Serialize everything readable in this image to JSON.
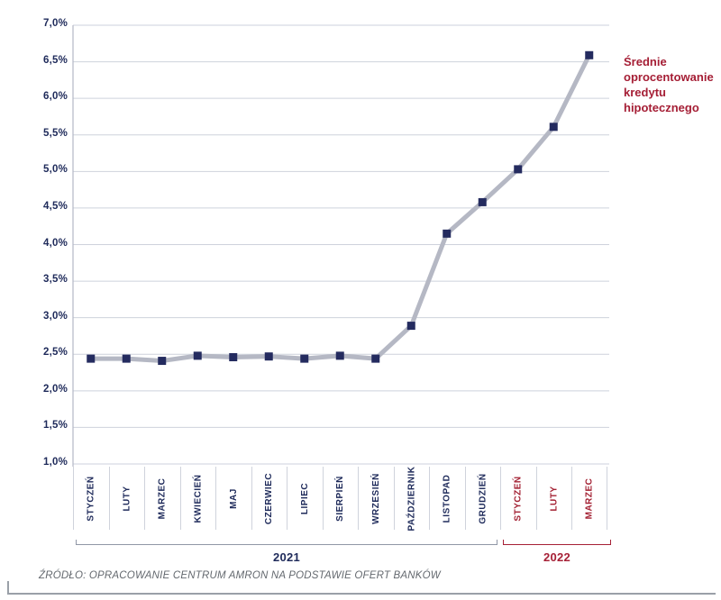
{
  "legend": {
    "text": "Średnie oprocentowanie kredytu hipotecznego",
    "color": "#a51e35"
  },
  "source": {
    "text": "ŹRÓDŁO: OPRACOWANIE CENTRUM AMRON NA PODSTAWIE OFERT BANKÓW"
  },
  "chart_data": {
    "type": "line",
    "title": "",
    "xlabel": "",
    "ylabel": "",
    "ylim": [
      1.0,
      7.0
    ],
    "ytick_step": 0.5,
    "grid": true,
    "legend_position": "right",
    "ytick_labels": [
      "7,0%",
      "6,5%",
      "6,0%",
      "5,5%",
      "5,0%",
      "4,5%",
      "4,0%",
      "3,5%",
      "3,0%",
      "2,5%",
      "2,0%",
      "1,5%",
      "1,0%"
    ],
    "categories": [
      "STYCZEŃ",
      "LUTY",
      "MARZEC",
      "KWIECIEŃ",
      "MAJ",
      "CZERWIEC",
      "LIPIEC",
      "SIERPIEŃ",
      "WRZESIEŃ",
      "PAŹDZIERNIK",
      "LISTOPAD",
      "GRUDZIEŃ",
      "STYCZEŃ",
      "LUTY",
      "MARZEC"
    ],
    "category_years": [
      2021,
      2021,
      2021,
      2021,
      2021,
      2021,
      2021,
      2021,
      2021,
      2021,
      2021,
      2021,
      2022,
      2022,
      2022
    ],
    "series": [
      {
        "name": "Średnie oprocentowanie kredytu hipotecznego",
        "values": [
          2.44,
          2.44,
          2.41,
          2.48,
          2.46,
          2.47,
          2.44,
          2.48,
          2.44,
          2.89,
          4.15,
          4.58,
          5.03,
          5.61,
          6.59
        ]
      }
    ],
    "year_groups": [
      {
        "label": "2021",
        "start": 0,
        "end": 11,
        "color": "#9097a6",
        "text_color": "#1e2a5a"
      },
      {
        "label": "2022",
        "start": 12,
        "end": 14,
        "color": "#a62036",
        "text_color": "#a62036"
      }
    ],
    "colors": {
      "line": "#b5b8c4",
      "marker": "#242b5f",
      "grid": "#ced2dc",
      "axis": "#b3b8c6",
      "tick_label": "#1e2a5a",
      "month_2021": "#1e2a5a",
      "month_2022": "#a32133",
      "separator": "#cfd3dc"
    }
  }
}
